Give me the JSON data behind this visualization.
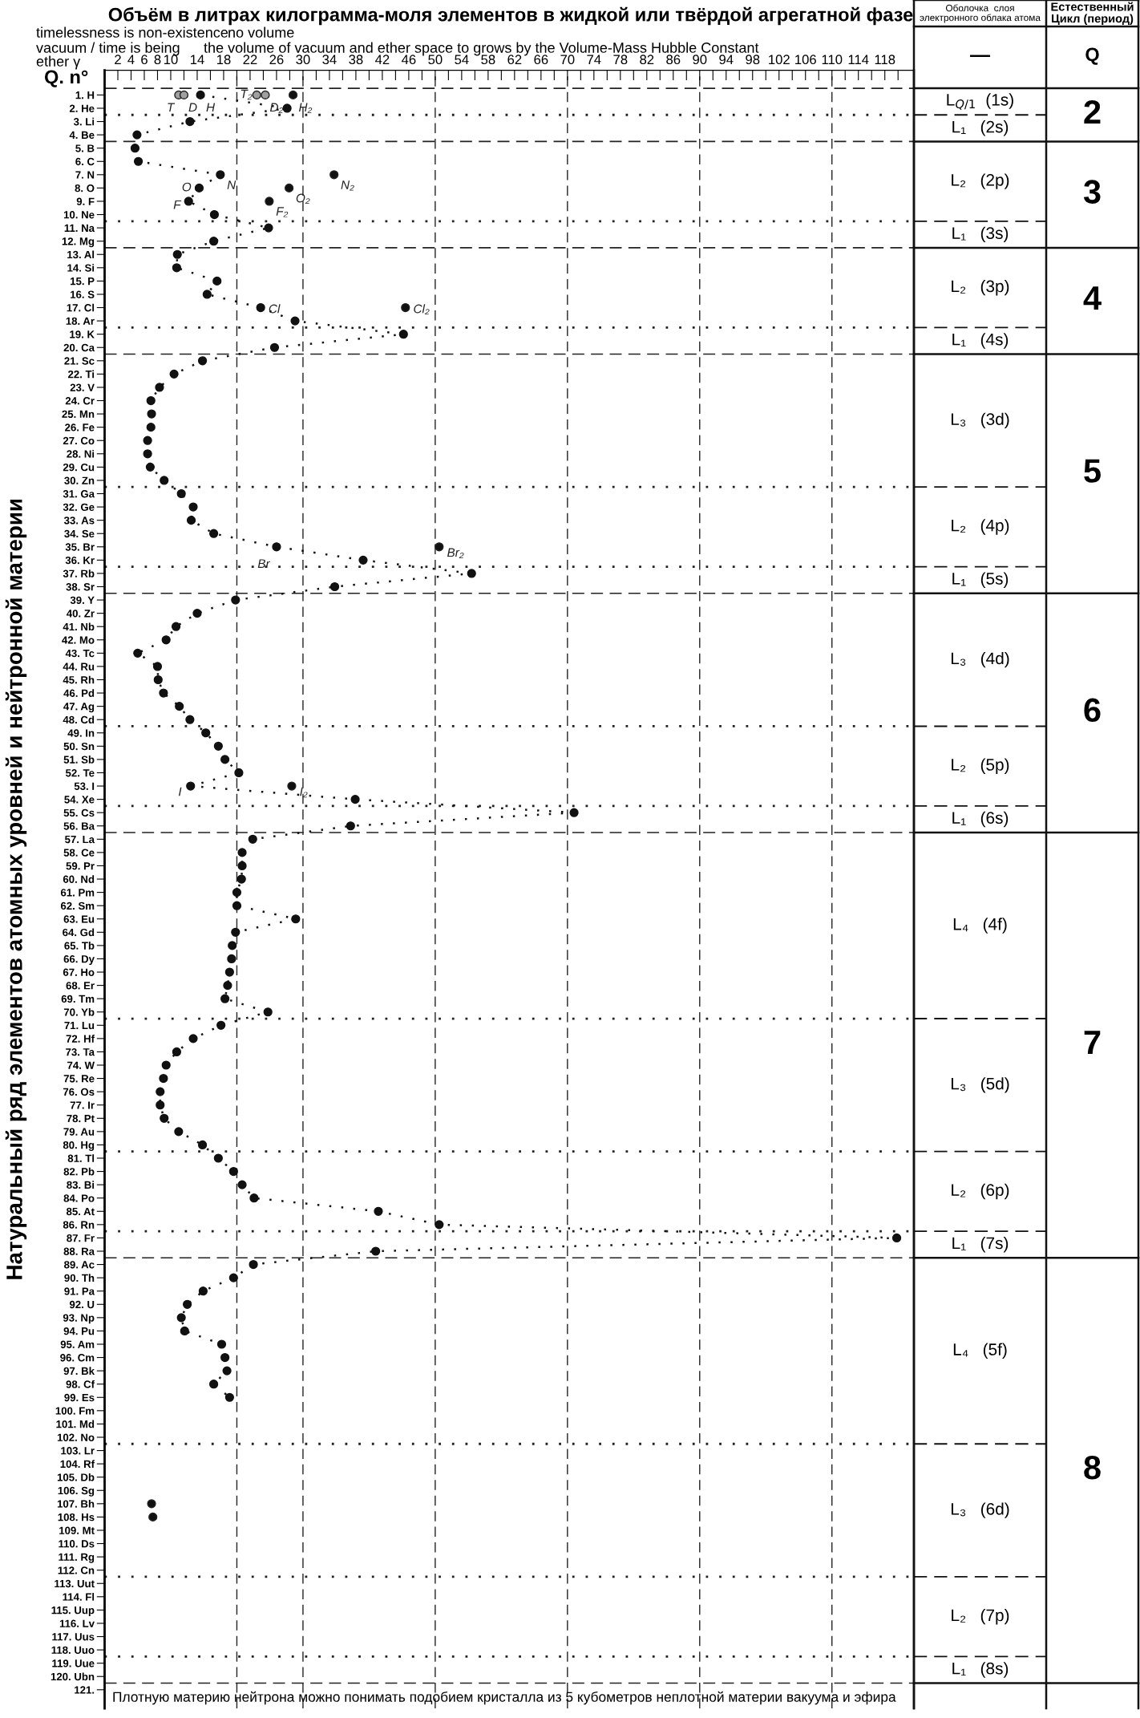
{
  "chart_data": {
    "type": "line",
    "title": "Объём в литрах килограмма-моля элементов в жидкой или твёрдой агрегатной фазе",
    "ylabel": "Натуральный ряд элементов атомных уровней и нейтронной материи",
    "xlim": [
      0,
      122.4
    ],
    "ylim": [
      122.4,
      -0.86
    ],
    "xticks": [
      2,
      4,
      6,
      8,
      10,
      {
        "value": 12,
        "label": null
      },
      14,
      {
        "value": 16,
        "label": null
      },
      18,
      {
        "value": 20,
        "label": null
      },
      22,
      {
        "value": 24,
        "label": null
      },
      26,
      {
        "value": 28,
        "label": null
      },
      30,
      {
        "value": 32,
        "label": null
      },
      34,
      {
        "value": 36,
        "label": null
      },
      38,
      {
        "value": 40,
        "label": null
      },
      42,
      {
        "value": 44,
        "label": null
      },
      46,
      {
        "value": 48,
        "label": null
      },
      50,
      {
        "value": 52,
        "label": null
      },
      54,
      {
        "value": 56,
        "label": null
      },
      58,
      {
        "value": 60,
        "label": null
      },
      62,
      {
        "value": 64,
        "label": null
      },
      66,
      {
        "value": 68,
        "label": null
      },
      70,
      {
        "value": 72,
        "label": null
      },
      74,
      {
        "value": 76,
        "label": null
      },
      78,
      {
        "value": 80,
        "label": null
      },
      82,
      {
        "value": 84,
        "label": null
      },
      86,
      {
        "value": 88,
        "label": null
      },
      90,
      {
        "value": 92,
        "label": null
      },
      94,
      {
        "value": 96,
        "label": null
      },
      98,
      {
        "value": 100,
        "label": null
      },
      102,
      {
        "value": 104,
        "label": null
      },
      106,
      {
        "value": 108,
        "label": null
      },
      110,
      {
        "value": 112,
        "label": null
      },
      114,
      {
        "value": 116,
        "label": null
      },
      118,
      {
        "value": 120,
        "label": null
      }
    ],
    "yticks": [
      {
        "value": 1,
        "label": "1. H"
      },
      {
        "value": 2,
        "label": "2. He"
      },
      {
        "value": 3,
        "label": "3. Li"
      },
      {
        "value": 4,
        "label": "4. Be"
      },
      {
        "value": 5,
        "label": "5. B"
      },
      {
        "value": 6,
        "label": "6. C"
      },
      {
        "value": 7,
        "label": "7. N"
      },
      {
        "value": 8,
        "label": "8. O"
      },
      {
        "value": 9,
        "label": "9. F"
      },
      {
        "value": 10,
        "label": "10. Ne"
      },
      {
        "value": 11,
        "label": "11. Na"
      },
      {
        "value": 12,
        "label": "12. Mg"
      },
      {
        "value": 13,
        "label": "13. Al"
      },
      {
        "value": 14,
        "label": "14. Si"
      },
      {
        "value": 15,
        "label": "15. P"
      },
      {
        "value": 16,
        "label": "16. S"
      },
      {
        "value": 17,
        "label": "17. Cl"
      },
      {
        "value": 18,
        "label": "18. Ar"
      },
      {
        "value": 19,
        "label": "19. K"
      },
      {
        "value": 20,
        "label": "20. Ca"
      },
      {
        "value": 21,
        "label": "21. Sc"
      },
      {
        "value": 22,
        "label": "22. Ti"
      },
      {
        "value": 23,
        "label": "23. V"
      },
      {
        "value": 24,
        "label": "24. Cr"
      },
      {
        "value": 25,
        "label": "25. Mn"
      },
      {
        "value": 26,
        "label": "26. Fe"
      },
      {
        "value": 27,
        "label": "27. Co"
      },
      {
        "value": 28,
        "label": "28. Ni"
      },
      {
        "value": 29,
        "label": "29. Cu"
      },
      {
        "value": 30,
        "label": "30. Zn"
      },
      {
        "value": 31,
        "label": "31. Ga"
      },
      {
        "value": 32,
        "label": "32. Ge"
      },
      {
        "value": 33,
        "label": "33. As"
      },
      {
        "value": 34,
        "label": "34. Se"
      },
      {
        "value": 35,
        "label": "35. Br"
      },
      {
        "value": 36,
        "label": "36. Kr"
      },
      {
        "value": 37,
        "label": "37. Rb"
      },
      {
        "value": 38,
        "label": "38. Sr"
      },
      {
        "value": 39,
        "label": "39. Y"
      },
      {
        "value": 40,
        "label": "40. Zr"
      },
      {
        "value": 41,
        "label": "41. Nb"
      },
      {
        "value": 42,
        "label": "42. Mo"
      },
      {
        "value": 43,
        "label": "43. Tc"
      },
      {
        "value": 44,
        "label": "44. Ru"
      },
      {
        "value": 45,
        "label": "45. Rh"
      },
      {
        "value": 46,
        "label": "46. Pd"
      },
      {
        "value": 47,
        "label": "47. Ag"
      },
      {
        "value": 48,
        "label": "48. Cd"
      },
      {
        "value": 49,
        "label": "49. In"
      },
      {
        "value": 50,
        "label": "50. Sn"
      },
      {
        "value": 51,
        "label": "51. Sb"
      },
      {
        "value": 52,
        "label": "52. Te"
      },
      {
        "value": 53,
        "label": "53. I"
      },
      {
        "value": 54,
        "label": "54. Xe"
      },
      {
        "value": 55,
        "label": "55. Cs"
      },
      {
        "value": 56,
        "label": "56. Ba"
      },
      {
        "value": 57,
        "label": "57. La"
      },
      {
        "value": 58,
        "label": "58. Ce"
      },
      {
        "value": 59,
        "label": "59. Pr"
      },
      {
        "value": 60,
        "label": "60. Nd"
      },
      {
        "value": 61,
        "label": "61. Pm"
      },
      {
        "value": 62,
        "label": "62. Sm"
      },
      {
        "value": 63,
        "label": "63. Eu"
      },
      {
        "value": 64,
        "label": "64. Gd"
      },
      {
        "value": 65,
        "label": "65. Tb"
      },
      {
        "value": 66,
        "label": "66. Dy"
      },
      {
        "value": 67,
        "label": "67. Ho"
      },
      {
        "value": 68,
        "label": "68. Er"
      },
      {
        "value": 69,
        "label": "69. Tm"
      },
      {
        "value": 70,
        "label": "70. Yb"
      },
      {
        "value": 71,
        "label": "71. Lu"
      },
      {
        "value": 72,
        "label": "72. Hf"
      },
      {
        "value": 73,
        "label": "73. Ta"
      },
      {
        "value": 74,
        "label": "74. W"
      },
      {
        "value": 75,
        "label": "75. Re"
      },
      {
        "value": 76,
        "label": "76. Os"
      },
      {
        "value": 77,
        "label": "77. Ir"
      },
      {
        "value": 78,
        "label": "78. Pt"
      },
      {
        "value": 79,
        "label": "79. Au"
      },
      {
        "value": 80,
        "label": "80. Hg"
      },
      {
        "value": 81,
        "label": "81. Tl"
      },
      {
        "value": 82,
        "label": "82. Pb"
      },
      {
        "value": 83,
        "label": "83. Bi"
      },
      {
        "value": 84,
        "label": "84. Po"
      },
      {
        "value": 85,
        "label": "85. At"
      },
      {
        "value": 86,
        "label": "86. Rn"
      },
      {
        "value": 87,
        "label": "87. Fr"
      },
      {
        "value": 88,
        "label": "88. Ra"
      },
      {
        "value": 89,
        "label": "89. Ac"
      },
      {
        "value": 90,
        "label": "90. Th"
      },
      {
        "value": 91,
        "label": "91. Pa"
      },
      {
        "value": 92,
        "label": "92. U"
      },
      {
        "value": 93,
        "label": "93. Np"
      },
      {
        "value": 94,
        "label": "94. Pu"
      },
      {
        "value": 95,
        "label": "95. Am"
      },
      {
        "value": 96,
        "label": "96. Cm"
      },
      {
        "value": 97,
        "label": "97. Bk"
      },
      {
        "value": 98,
        "label": "98. Cf"
      },
      {
        "value": 99,
        "label": "99. Es"
      },
      {
        "value": 100,
        "label": "100. Fm"
      },
      {
        "value": 101,
        "label": "101. Md"
      },
      {
        "value": 102,
        "label": "102. No"
      },
      {
        "value": 103,
        "label": "103. Lr"
      },
      {
        "value": 104,
        "label": "104. Rf"
      },
      {
        "value": 105,
        "label": "105. Db"
      },
      {
        "value": 106,
        "label": "106. Sg"
      },
      {
        "value": 107,
        "label": "107. Bh"
      },
      {
        "value": 108,
        "label": "108. Hs"
      },
      {
        "value": 109,
        "label": "109. Mt"
      },
      {
        "value": 110,
        "label": "110. Ds"
      },
      {
        "value": 111,
        "label": "111. Rg"
      },
      {
        "value": 112,
        "label": "112. Cn"
      },
      {
        "value": 113,
        "label": "113. Uut"
      },
      {
        "value": 114,
        "label": "114. Fl"
      },
      {
        "value": 115,
        "label": "115. Uup"
      },
      {
        "value": 116,
        "label": "116. Lv"
      },
      {
        "value": 117,
        "label": "117. Uus"
      },
      {
        "value": 118,
        "label": "118. Uuo"
      },
      {
        "value": 119,
        "label": "119. Uue"
      },
      {
        "value": 120,
        "label": "120. Ubn"
      },
      {
        "value": 121,
        "label": "121."
      }
    ],
    "series": [
      {
        "type": "line",
        "color": "#111111",
        "line_style": "dotted",
        "marker": "circle",
        "values": [
          1,
          2,
          3,
          4,
          5,
          6,
          7,
          8,
          9,
          10,
          11,
          12,
          13,
          14,
          15,
          16,
          17,
          18,
          19,
          20,
          21,
          22,
          23,
          24,
          25,
          26,
          27,
          28,
          29,
          30,
          31,
          32,
          33,
          34,
          35,
          36,
          37,
          38,
          39,
          40,
          41,
          42,
          43,
          44,
          45,
          46,
          47,
          48,
          49,
          50,
          51,
          52,
          53,
          54,
          55,
          56,
          57,
          58,
          59,
          60,
          61,
          62,
          63,
          64,
          65,
          66,
          67,
          68,
          69,
          70,
          71,
          72,
          73,
          74,
          75,
          76,
          77,
          78,
          79,
          80,
          81,
          82,
          83,
          84,
          85,
          86,
          87,
          88,
          89,
          90,
          91,
          92,
          93,
          94,
          95,
          96,
          97,
          98,
          99
        ],
        "x": [
          14.5,
          27.6,
          12.9,
          4.9,
          4.6,
          5.1,
          17.5,
          14.3,
          12.7,
          16.6,
          24.8,
          16.5,
          11.0,
          10.9,
          17.0,
          15.5,
          23.6,
          28.8,
          45.2,
          25.7,
          14.8,
          10.5,
          8.3,
          7.0,
          7.1,
          7.0,
          6.5,
          6.5,
          6.9,
          9.0,
          11.6,
          13.4,
          13.1,
          16.5,
          26.0,
          39.1,
          55.5,
          34.8,
          19.8,
          14.0,
          10.8,
          9.3,
          5.0,
          8.0,
          8.1,
          8.9,
          11.3,
          12.9,
          15.3,
          17.2,
          18.2,
          20.3,
          13.0,
          37.9,
          71.0,
          37.2,
          22.4,
          20.8,
          20.8,
          20.7,
          20.0,
          20.0,
          28.9,
          19.8,
          19.3,
          19.2,
          18.9,
          18.6,
          18.2,
          24.7,
          17.6,
          13.4,
          10.9,
          9.3,
          8.9,
          8.4,
          8.4,
          9.0,
          11.2,
          14.8,
          17.2,
          19.5,
          20.8,
          22.6,
          41.4,
          50.6,
          119.8,
          41.0,
          22.5,
          19.5,
          14.9,
          12.5,
          11.6,
          12.1,
          17.7,
          18.2,
          18.5,
          16.5,
          18.9
        ]
      },
      {
        "type": "scatter",
        "color": "#111111",
        "marker": "circle",
        "values": [
          107,
          108
        ],
        "x": [
          7.1,
          7.3
        ]
      },
      {
        "type": "scatter",
        "color": "#111111",
        "marker": "circle",
        "values": [
          1,
          7,
          8,
          9,
          17,
          35,
          53
        ],
        "x": [
          28.5,
          34.7,
          27.9,
          24.9,
          45.5,
          50.6,
          28.3
        ]
      },
      {
        "type": "scatter",
        "color": "#a0a0a0",
        "marker": "circle",
        "values": [
          1,
          1,
          1,
          1
        ],
        "x": [
          11.2,
          12.0,
          23.0,
          24.3
        ]
      }
    ],
    "annotations": [
      "timelessness is non-existence",
      "no volume",
      "vacuum / time is being",
      "the volume of vacuum and ether space to grows by the Volume-Mass Hubble Constant",
      "ether γ",
      "Q. n°",
      "Плотную материю нейтрона можно понимать подобием кристалла из 5 кубометров неплотной материи вакуума и эфира",
      "Оболочка  слоя\nэлектронного облака атома",
      "Естественный\nЦикл (период)",
      "—",
      "Q",
      {
        "text": "T",
        "x": 11.2,
        "y": 1
      },
      {
        "text": "D",
        "x": 12.0,
        "y": 1
      },
      {
        "text": "H",
        "x": 14.5,
        "y": 1
      },
      {
        "text": "T₂",
        "x": 23.0,
        "y": 1
      },
      {
        "text": "D₂",
        "x": 24.3,
        "y": 1
      },
      {
        "text": "H₂",
        "x": 28.5,
        "y": 1
      },
      {
        "text": "N",
        "x": 17.5,
        "y": 7
      },
      {
        "text": "N₂",
        "x": 34.7,
        "y": 7
      },
      {
        "text": "O",
        "x": 14.3,
        "y": 8
      },
      {
        "text": "O₂",
        "x": 27.9,
        "y": 8
      },
      {
        "text": "F",
        "x": 12.7,
        "y": 9
      },
      {
        "text": "F₂",
        "x": 24.9,
        "y": 9
      },
      {
        "text": "Cl",
        "x": 23.6,
        "y": 17
      },
      {
        "text": "Cl₂",
        "x": 45.5,
        "y": 17
      },
      {
        "text": "Br",
        "x": 26.0,
        "y": 35
      },
      {
        "text": "Br₂",
        "x": 50.6,
        "y": 35
      },
      {
        "text": "I",
        "x": 13.0,
        "y": 53
      },
      {
        "text": "I₂",
        "x": 28.3,
        "y": 53
      },
      "L$_{Q/1}$  (1s)",
      "L₁   (2s)",
      "L₂   (2p)",
      "L₁   (3s)",
      "L₂   (3p)",
      "L₁   (4s)",
      "L₃   (3d)",
      "L₂   (4p)",
      "L₁   (5s)",
      "L₃   (4d)",
      "L₂   (5p)",
      "L₁   (6s)",
      "L₄   (4f)",
      "L₃   (5d)",
      "L₂   (6p)",
      "L₁   (7s)",
      "L₄   (5f)",
      "L₃   (6d)",
      "L₂   (7p)",
      "L₁   (8s)",
      "2",
      "3",
      "4",
      "5",
      "6",
      "7",
      "8"
    ],
    "ref_lines": [
      {
        "axis": "y",
        "value": 0.5,
        "line_style": "dashed"
      },
      {
        "axis": "y",
        "value": 4.5,
        "line_style": "dashed"
      },
      {
        "axis": "y",
        "value": 12.5,
        "line_style": "dashed"
      },
      {
        "axis": "y",
        "value": 20.5,
        "line_style": "dashed"
      },
      {
        "axis": "y",
        "value": 38.5,
        "line_style": "dashed"
      },
      {
        "axis": "y",
        "value": 56.5,
        "line_style": "dashed"
      },
      {
        "axis": "y",
        "value": 88.5,
        "line_style": "dashed"
      },
      {
        "axis": "y",
        "value": 120.5,
        "line_style": "dashed"
      },
      {
        "axis": "y",
        "value": 2.5,
        "line_style": "dotted"
      },
      {
        "axis": "y",
        "value": 10.5,
        "line_style": "dotted"
      },
      {
        "axis": "y",
        "value": 18.5,
        "line_style": "dotted"
      },
      {
        "axis": "y",
        "value": 30.5,
        "line_style": "dotted"
      },
      {
        "axis": "y",
        "value": 36.5,
        "line_style": "dotted"
      },
      {
        "axis": "y",
        "value": 48.5,
        "line_style": "dotted"
      },
      {
        "axis": "y",
        "value": 54.5,
        "line_style": "dotted"
      },
      {
        "axis": "y",
        "value": 70.5,
        "line_style": "dotted"
      },
      {
        "axis": "y",
        "value": 80.5,
        "line_style": "dotted"
      },
      {
        "axis": "y",
        "value": 86.5,
        "line_style": "dotted"
      },
      {
        "axis": "y",
        "value": 102.5,
        "line_style": "dotted"
      },
      {
        "axis": "y",
        "value": 112.5,
        "line_style": "dotted"
      },
      {
        "axis": "y",
        "value": 118.5,
        "line_style": "dotted"
      },
      {
        "axis": "x",
        "value": 20,
        "line_style": "dashed"
      },
      {
        "axis": "x",
        "value": 30,
        "line_style": "dashed"
      },
      {
        "axis": "x",
        "value": 50,
        "line_style": "dashed"
      },
      {
        "axis": "x",
        "value": 70,
        "line_style": "dashed"
      },
      {
        "axis": "x",
        "value": 90,
        "line_style": "dashed"
      },
      {
        "axis": "x",
        "value": 110,
        "line_style": "dashed"
      }
    ]
  }
}
